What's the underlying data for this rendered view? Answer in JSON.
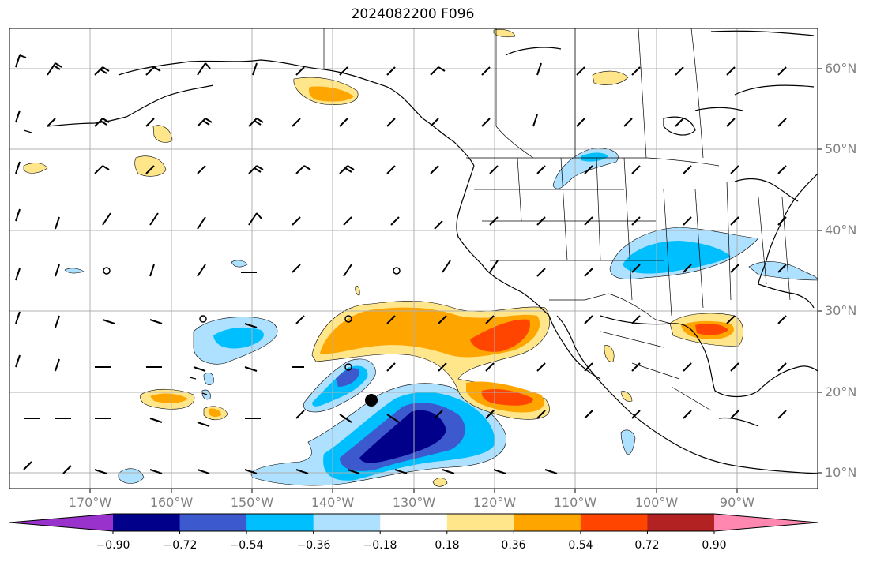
{
  "title": "2024082200 F096",
  "lat_labels": [
    "60°N",
    "50°N",
    "40°N",
    "30°N",
    "20°N",
    "10°N"
  ],
  "lon_labels": [
    "170°W",
    "160°W",
    "150°W",
    "140°W",
    "130°W",
    "120°W",
    "110°W",
    "100°W",
    "90°W"
  ],
  "colorbar": {
    "colors": [
      "#9932cc",
      "#00008b",
      "#3c59cd",
      "#00bfff",
      "#aee0ff",
      "#ffffff",
      "#ffe68a",
      "#ffa500",
      "#ff4500",
      "#b22222",
      "#ff87b0"
    ],
    "labels": [
      "−0.90",
      "−0.72",
      "−0.54",
      "−0.36",
      "−0.18",
      "0.18",
      "0.36",
      "0.54",
      "0.72",
      "0.90"
    ]
  },
  "colors": {
    "grid": "#b0b0b0",
    "coast": "#000000",
    "tick_label": "#808080"
  }
}
